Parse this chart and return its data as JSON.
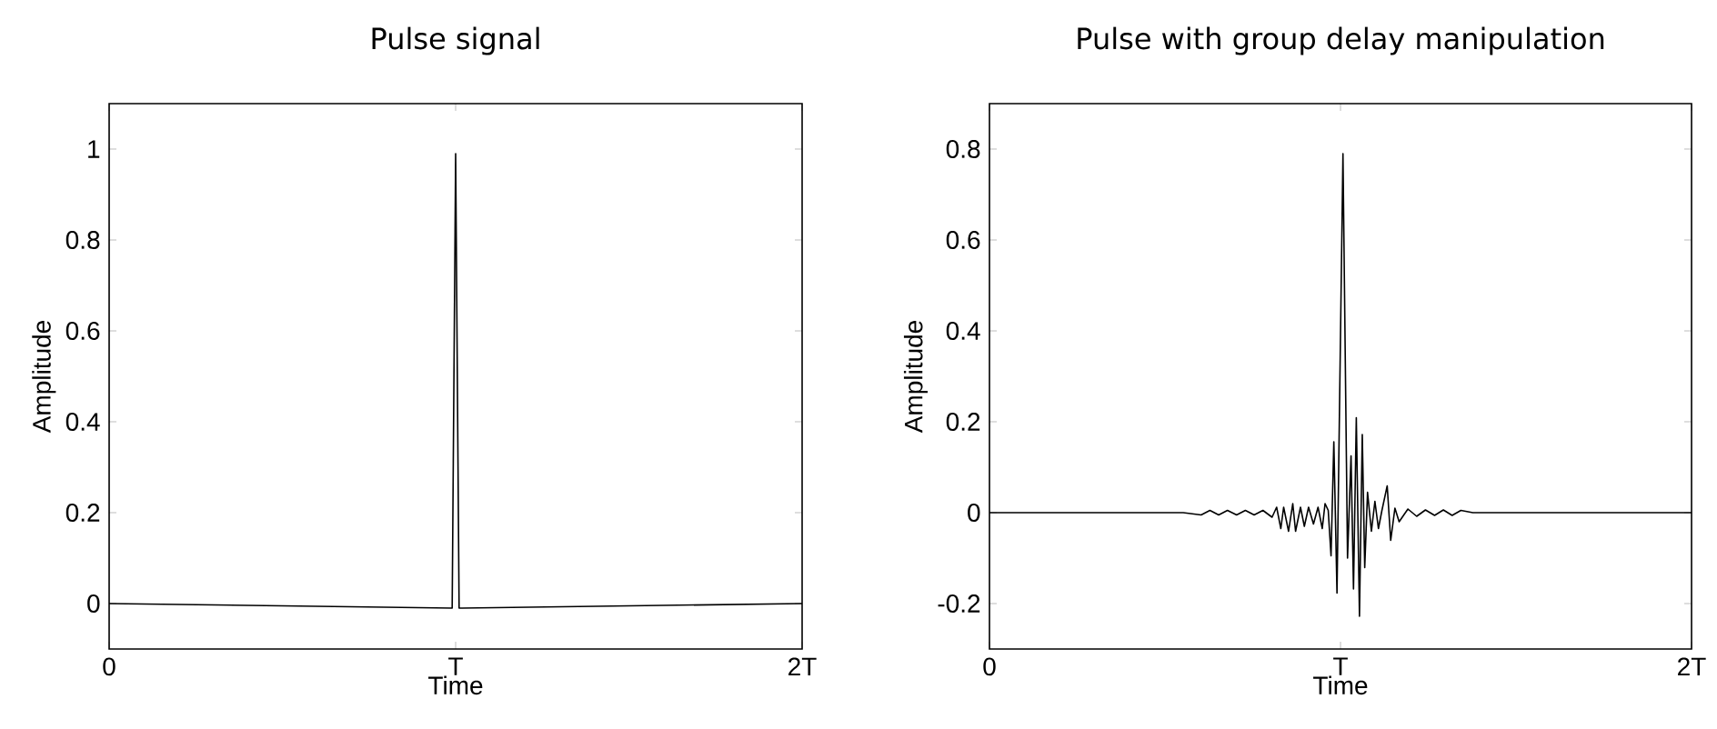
{
  "chart_data": [
    {
      "type": "line",
      "title": "Pulse signal",
      "xlabel": "Time",
      "ylabel": "Amplitude",
      "color": "#000000",
      "xlim": [
        0,
        2
      ],
      "ylim": [
        -0.1,
        1.1
      ],
      "xticks": [
        {
          "value": 0,
          "label": "0"
        },
        {
          "value": 1,
          "label": "T"
        },
        {
          "value": 2,
          "label": "2T"
        }
      ],
      "yticks": [
        0,
        0.2,
        0.4,
        0.6,
        0.8,
        1
      ],
      "x": [
        0,
        0.5,
        0.99,
        1.0,
        1.01,
        1.5,
        2
      ],
      "values": [
        0,
        -0.005,
        -0.01,
        0.99,
        -0.01,
        -0.005,
        0
      ]
    },
    {
      "type": "line",
      "title": "Pulse with group delay manipulation",
      "xlabel": "Time",
      "ylabel": "Amplitude",
      "color": "#000000",
      "xlim": [
        0,
        2
      ],
      "ylim": [
        -0.3,
        0.9
      ],
      "xticks": [
        {
          "value": 0,
          "label": "0"
        },
        {
          "value": 1,
          "label": "T"
        },
        {
          "value": 2,
          "label": "2T"
        }
      ],
      "yticks": [
        -0.2,
        0,
        0.2,
        0.4,
        0.6,
        0.8
      ],
      "x": [
        0,
        0.3,
        0.451,
        0.552,
        0.603,
        0.628,
        0.653,
        0.678,
        0.704,
        0.729,
        0.754,
        0.779,
        0.805,
        0.818,
        0.83,
        0.838,
        0.852,
        0.864,
        0.872,
        0.886,
        0.897,
        0.909,
        0.923,
        0.936,
        0.948,
        0.956,
        0.965,
        0.973,
        0.981,
        0.99,
        1.007,
        1.02,
        1.03,
        1.037,
        1.045,
        1.054,
        1.062,
        1.069,
        1.077,
        1.088,
        1.098,
        1.108,
        1.118,
        1.133,
        1.143,
        1.155,
        1.167,
        1.192,
        1.217,
        1.242,
        1.268,
        1.293,
        1.318,
        1.343,
        1.377,
        1.6,
        2
      ],
      "values": [
        0,
        0,
        0,
        0,
        -0.005,
        0.005,
        -0.005,
        0.005,
        -0.005,
        0.005,
        -0.005,
        0.005,
        -0.01,
        0.012,
        -0.035,
        0.012,
        -0.041,
        0.02,
        -0.041,
        0.012,
        -0.03,
        0.012,
        -0.025,
        0.012,
        -0.035,
        0.02,
        0.005,
        -0.095,
        0.156,
        -0.177,
        0.79,
        -0.1,
        0.125,
        -0.168,
        0.209,
        -0.228,
        0.172,
        -0.121,
        0.045,
        -0.041,
        0.025,
        -0.035,
        0.005,
        0.059,
        -0.061,
        0.01,
        -0.02,
        0.008,
        -0.008,
        0.006,
        -0.006,
        0.006,
        -0.006,
        0.005,
        0,
        0,
        0
      ]
    }
  ]
}
